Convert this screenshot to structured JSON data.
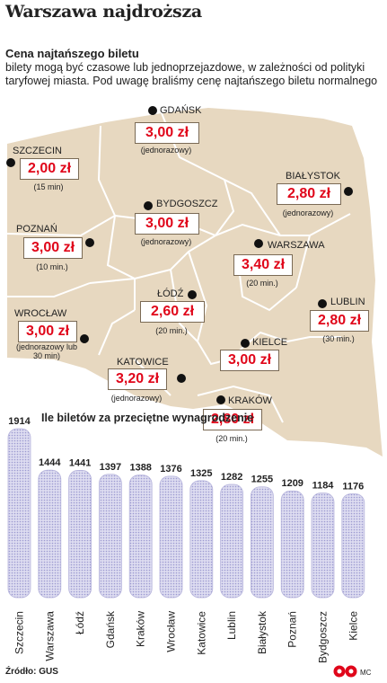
{
  "title": "Warszawa najdroższa",
  "subtitle": "Cena najtańszego biletu",
  "description": "bilety mogą być czasowe lub jednoprzejazdowe, w zależności od polityki taryfowej miasta. Pod uwagę braliśmy cenę najtańszego biletu normalnego",
  "map": {
    "cities": [
      {
        "name": "GDAŃSK",
        "price": "3,00 zł",
        "note": "(jednorazowy)"
      },
      {
        "name": "SZCZECIN",
        "price": "2,00 zł",
        "note": "(15 min)"
      },
      {
        "name": "BIAŁYSTOK",
        "price": "2,80 zł",
        "note": "(jednorazowy)"
      },
      {
        "name": "BYDGOSZCZ",
        "price": "3,00 zł",
        "note": "(jednorazowy)"
      },
      {
        "name": "POZNAŃ",
        "price": "3,00 zł",
        "note": "(10 min.)"
      },
      {
        "name": "WARSZAWA",
        "price": "3,40 zł",
        "note": "(20 min.)"
      },
      {
        "name": "ŁÓDŹ",
        "price": "2,60 zł",
        "note": "(20 min.)"
      },
      {
        "name": "LUBLIN",
        "price": "2,80 zł",
        "note": "(30 min.)"
      },
      {
        "name": "WROCŁAW",
        "price": "3,00 zł",
        "note": "(jednorazowy lub 30 min)"
      },
      {
        "name": "KIELCE",
        "price": "3,00 zł",
        "note": ""
      },
      {
        "name": "KATOWICE",
        "price": "3,20 zł",
        "note": "(jednorazowy)"
      },
      {
        "name": "KRAKÓW",
        "price": "2,80 zł",
        "note": "(20 min.)"
      }
    ],
    "fill_color": "#e7d8c0",
    "border_color": "#ffffff",
    "price_color": "#e0061a"
  },
  "chart_data": {
    "type": "bar",
    "title": "Ile biletów za przeciętne wynagrodzenie",
    "categories": [
      "Szczecin",
      "Warszawa",
      "Łódź",
      "Gdańsk",
      "Kraków",
      "Wrocław",
      "Katowice",
      "Lublin",
      "Białystok",
      "Poznań",
      "Bydgoszcz",
      "Kielce"
    ],
    "values": [
      1914,
      1444,
      1441,
      1397,
      1388,
      1376,
      1325,
      1282,
      1255,
      1209,
      1184,
      1176
    ],
    "bar_color": "#c9c8e6"
  },
  "source": "Źródło: GUS",
  "credit": "MC"
}
